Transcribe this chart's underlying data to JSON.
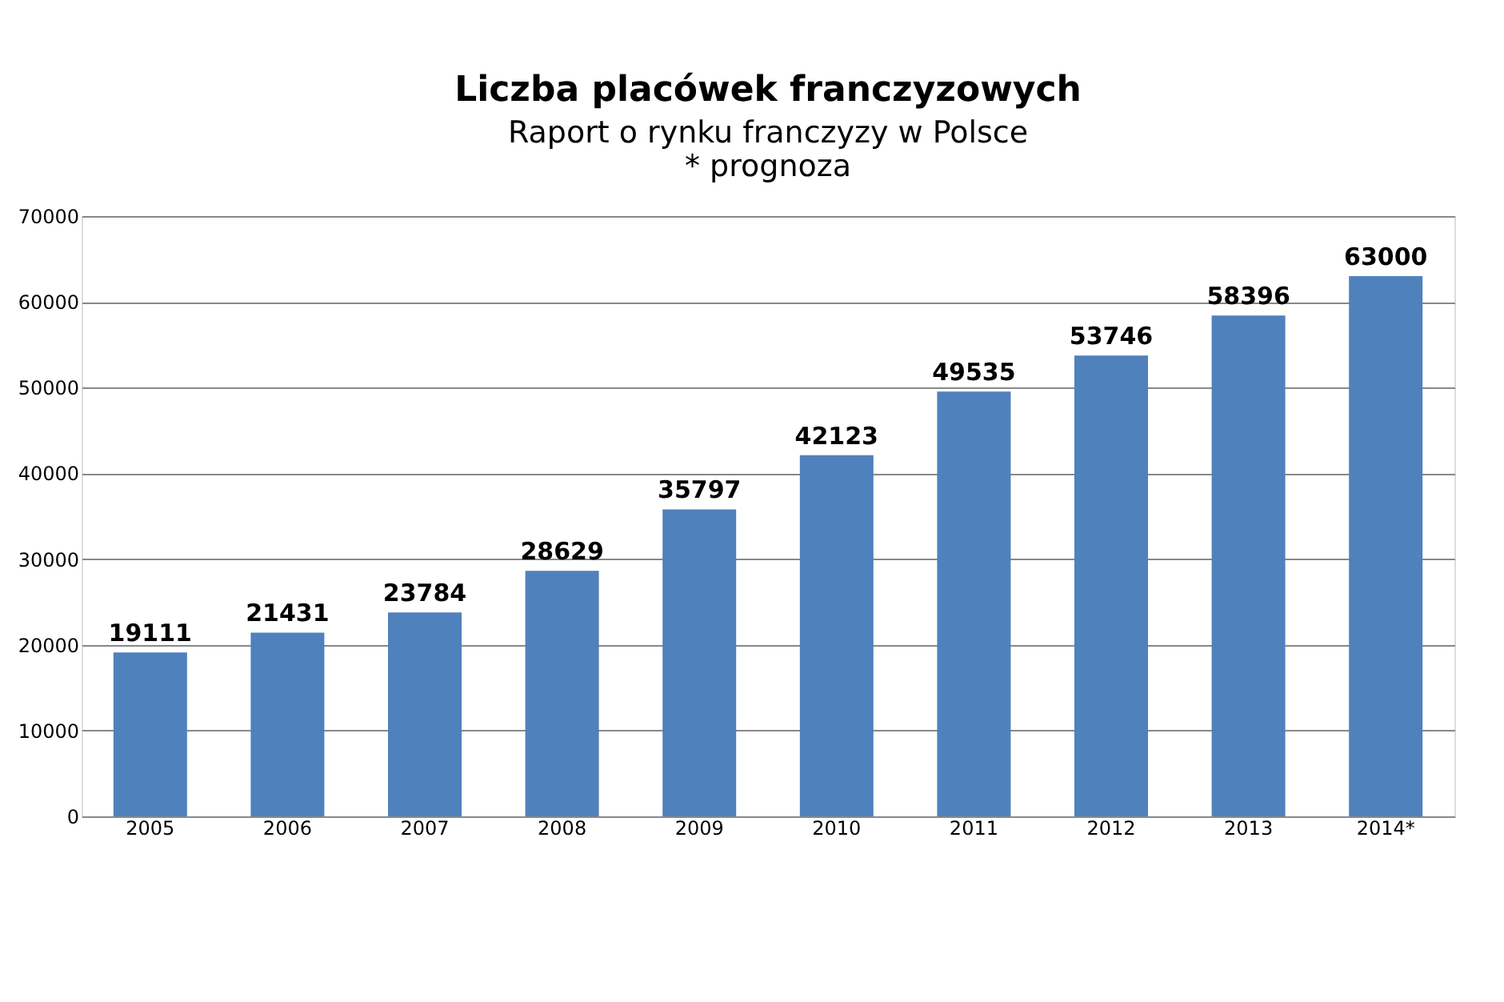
{
  "chart_data": {
    "type": "bar",
    "title": "Liczba placówek franczyzowych",
    "subtitle": "Raport o rynku franczyzy w Polsce",
    "annotations": [
      "* prognoza"
    ],
    "categories": [
      "2005",
      "2006",
      "2007",
      "2008",
      "2009",
      "2010",
      "2011",
      "2012",
      "2013",
      "2014*"
    ],
    "values": [
      19111,
      21431,
      23784,
      28629,
      35797,
      42123,
      49535,
      53746,
      58396,
      63000
    ],
    "color": "#4f81bd",
    "ylim": [
      0,
      70000
    ],
    "yticks": [
      0,
      10000,
      20000,
      30000,
      40000,
      50000,
      60000,
      70000
    ],
    "grid": "y",
    "data_labels": true
  }
}
